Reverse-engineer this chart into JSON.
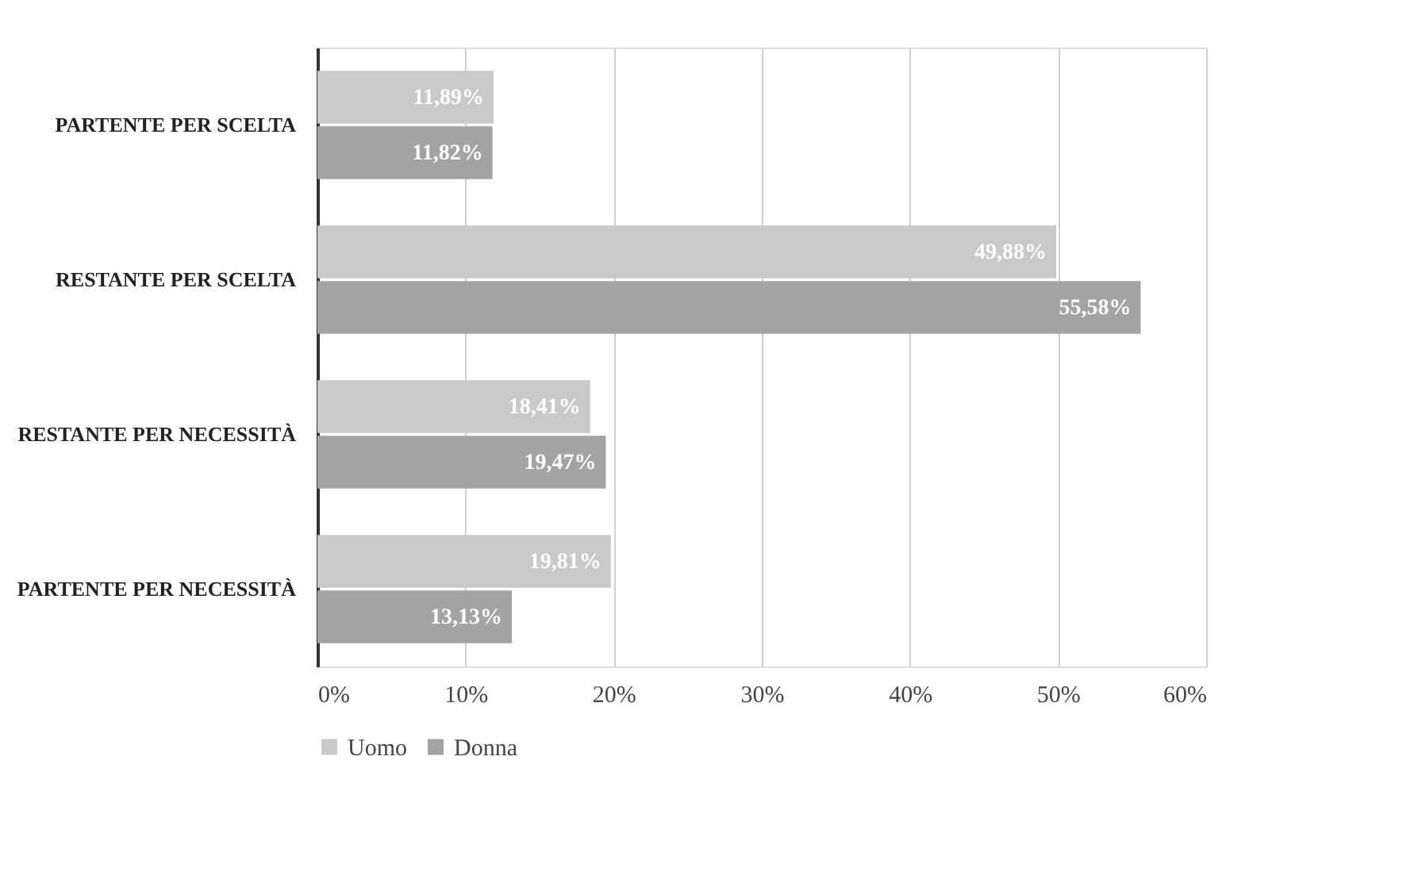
{
  "chart_data": {
    "type": "bar",
    "orientation": "horizontal",
    "categories": [
      "PARTENTE PER SCELTA",
      "RESTANTE PER SCELTA",
      "RESTANTE PER NECESSITÀ",
      "PARTENTE PER NECESSITÀ"
    ],
    "series": [
      {
        "name": "Uomo",
        "color": "#c9c9c9",
        "values": [
          11.89,
          49.88,
          18.41,
          19.81
        ],
        "value_labels": [
          "11,89%",
          "49,88%",
          "18,41%",
          "19,81%"
        ]
      },
      {
        "name": "Donna",
        "color": "#a3a3a3",
        "values": [
          11.82,
          55.58,
          19.47,
          13.13
        ],
        "value_labels": [
          "11,82%",
          "55,58%",
          "19,47%",
          "13,13%"
        ]
      }
    ],
    "xlim": [
      0,
      60
    ],
    "xticks": [
      {
        "value": 0,
        "label": "0%"
      },
      {
        "value": 10,
        "label": "10%"
      },
      {
        "value": 20,
        "label": "20%"
      },
      {
        "value": 30,
        "label": "30%"
      },
      {
        "value": 40,
        "label": "40%"
      },
      {
        "value": 50,
        "label": "50%"
      },
      {
        "value": 60,
        "label": "60%"
      }
    ],
    "grid": "x",
    "legend": "bottom"
  }
}
